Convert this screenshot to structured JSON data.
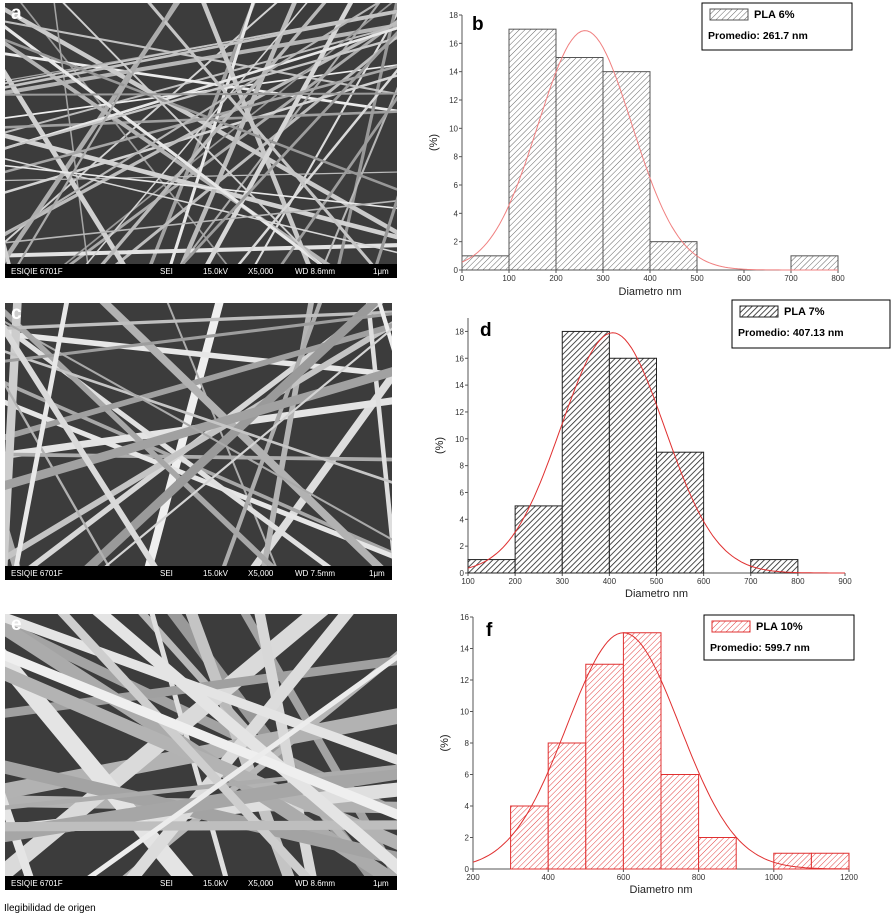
{
  "panels": [
    {
      "letter": "a",
      "info": {
        "inst": "ESIQIE 6701F",
        "mode": "SEI",
        "kv": "15.0kV",
        "mag": "X5,000",
        "wd": "WD 8.6mm",
        "scale": "1μm"
      }
    },
    {
      "letter": "c",
      "info": {
        "inst": "ESIQIE 6701F",
        "mode": "SEI",
        "kv": "15.0kV",
        "mag": "X5,000",
        "wd": "WD 7.5mm",
        "scale": "1μm"
      }
    },
    {
      "letter": "e",
      "info": {
        "inst": "ESIQIE 6701F",
        "mode": "SEI",
        "kv": "15.0kV",
        "mag": "X5,000",
        "wd": "WD 8.6mm",
        "scale": "1μm"
      }
    }
  ],
  "chart_data": [
    {
      "type": "bar",
      "letter": "b",
      "color": "#555555",
      "curve_color": "#f08080",
      "xlabel": "Diametro nm",
      "ylabel": "(%)",
      "xlim": [
        0,
        800
      ],
      "ylim": [
        0,
        18
      ],
      "xticks": [
        0,
        100,
        200,
        300,
        400,
        500,
        600,
        700,
        800
      ],
      "yticks": [
        0,
        2,
        4,
        6,
        8,
        10,
        12,
        14,
        16,
        18
      ],
      "bins": [
        [
          0,
          100,
          1
        ],
        [
          100,
          200,
          17
        ],
        [
          200,
          300,
          15
        ],
        [
          300,
          400,
          14
        ],
        [
          400,
          500,
          2
        ],
        [
          700,
          800,
          1
        ]
      ],
      "fit": {
        "mean": 261.7,
        "sd": 100,
        "peak": 16.9
      },
      "legend": {
        "series": "PLA 6%",
        "promedio": "Promedio: 261.7 nm"
      }
    },
    {
      "type": "bar",
      "letter": "d",
      "color": "#222222",
      "curve_color": "#e03030",
      "xlabel": "Diametro nm",
      "ylabel": "(%)",
      "xlim": [
        100,
        900
      ],
      "ylim": [
        0,
        19
      ],
      "xticks": [
        100,
        200,
        300,
        400,
        500,
        600,
        700,
        800,
        900
      ],
      "yticks": [
        0,
        2,
        4,
        6,
        8,
        10,
        12,
        14,
        16,
        18
      ],
      "bins": [
        [
          100,
          200,
          1
        ],
        [
          200,
          300,
          5
        ],
        [
          300,
          400,
          18
        ],
        [
          400,
          500,
          16
        ],
        [
          500,
          600,
          9
        ],
        [
          700,
          800,
          1
        ]
      ],
      "fit": {
        "mean": 407.13,
        "sd": 110,
        "peak": 17.9
      },
      "legend": {
        "series": "PLA 7%",
        "promedio": "Promedio: 407.13 nm"
      }
    },
    {
      "type": "bar",
      "letter": "f",
      "color": "#e03030",
      "curve_color": "#e03030",
      "xlabel": "Diametro nm",
      "ylabel": "(%)",
      "xlim": [
        200,
        1200
      ],
      "ylim": [
        0,
        16
      ],
      "xticks": [
        200,
        400,
        600,
        800,
        1000,
        1200
      ],
      "yticks": [
        0,
        2,
        4,
        6,
        8,
        10,
        12,
        14,
        16
      ],
      "bins": [
        [
          300,
          400,
          4
        ],
        [
          400,
          500,
          8
        ],
        [
          500,
          600,
          13
        ],
        [
          600,
          700,
          15
        ],
        [
          700,
          800,
          6
        ],
        [
          800,
          900,
          2
        ],
        [
          1000,
          1100,
          1
        ],
        [
          1100,
          1200,
          1
        ]
      ],
      "fit": {
        "mean": 599.7,
        "sd": 150,
        "peak": 15
      },
      "legend": {
        "series": "PLA 10%",
        "promedio": "Promedio: 599.7 nm"
      }
    }
  ],
  "footer": "Ilegibilidad de origen"
}
